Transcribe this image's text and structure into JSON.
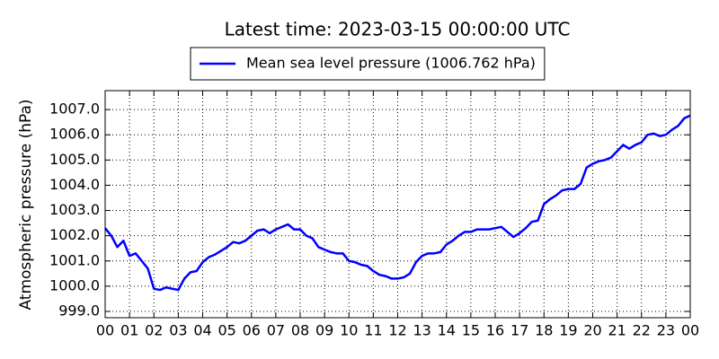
{
  "chart_data": {
    "type": "line",
    "title": "Latest time: 2023-03-15 00:00:00 UTC",
    "ylabel": "Atmospheric pressure (hPa)",
    "x": [
      0,
      0.25,
      0.5,
      0.75,
      1,
      1.25,
      1.5,
      1.75,
      2,
      2.25,
      2.5,
      2.75,
      3,
      3.25,
      3.5,
      3.75,
      4,
      4.25,
      4.5,
      4.75,
      5,
      5.25,
      5.5,
      5.75,
      6,
      6.25,
      6.5,
      6.75,
      7,
      7.25,
      7.5,
      7.75,
      8,
      8.25,
      8.5,
      8.75,
      9,
      9.25,
      9.5,
      9.75,
      10,
      10.25,
      10.5,
      10.75,
      11,
      11.25,
      11.5,
      11.75,
      12,
      12.25,
      12.5,
      12.75,
      13,
      13.25,
      13.5,
      13.75,
      14,
      14.25,
      14.5,
      14.75,
      15,
      15.25,
      15.5,
      15.75,
      16,
      16.25,
      16.5,
      16.75,
      17,
      17.25,
      17.5,
      17.75,
      18,
      18.25,
      18.5,
      18.75,
      19,
      19.25,
      19.5,
      19.75,
      20,
      20.25,
      20.5,
      20.75,
      21,
      21.25,
      21.5,
      21.75,
      22,
      22.25,
      22.5,
      22.75,
      23,
      23.25,
      23.5,
      23.75,
      24
    ],
    "series": [
      {
        "name": "Mean sea level pressure (1006.762 hPa)",
        "color": "#0000ff",
        "values": [
          1002.3,
          1002.0,
          1001.55,
          1001.8,
          1001.2,
          1001.3,
          1001.0,
          1000.7,
          999.9,
          999.85,
          999.95,
          999.9,
          999.85,
          1000.3,
          1000.55,
          1000.6,
          1000.95,
          1001.15,
          1001.25,
          1001.4,
          1001.55,
          1001.75,
          1001.7,
          1001.8,
          1002.0,
          1002.2,
          1002.25,
          1002.1,
          1002.25,
          1002.35,
          1002.45,
          1002.25,
          1002.25,
          1002.0,
          1001.9,
          1001.55,
          1001.45,
          1001.35,
          1001.3,
          1001.3,
          1001.0,
          1000.95,
          1000.85,
          1000.8,
          1000.6,
          1000.45,
          1000.4,
          1000.3,
          1000.3,
          1000.35,
          1000.5,
          1000.95,
          1001.2,
          1001.3,
          1001.3,
          1001.35,
          1001.65,
          1001.8,
          1002.0,
          1002.15,
          1002.15,
          1002.25,
          1002.25,
          1002.25,
          1002.3,
          1002.35,
          1002.15,
          1001.95,
          1002.1,
          1002.3,
          1002.55,
          1002.6,
          1003.25,
          1003.45,
          1003.6,
          1003.8,
          1003.85,
          1003.85,
          1004.05,
          1004.7,
          1004.85,
          1004.95,
          1005.0,
          1005.1,
          1005.35,
          1005.6,
          1005.45,
          1005.6,
          1005.7,
          1006.0,
          1006.05,
          1005.95,
          1006.0,
          1006.2,
          1006.35,
          1006.65,
          1006.762
        ]
      }
    ],
    "xlim": [
      0,
      24
    ],
    "xticks": [
      {
        "value": 0,
        "label": "00"
      },
      {
        "value": 1,
        "label": "01"
      },
      {
        "value": 2,
        "label": "02"
      },
      {
        "value": 3,
        "label": "03"
      },
      {
        "value": 4,
        "label": "04"
      },
      {
        "value": 5,
        "label": "05"
      },
      {
        "value": 6,
        "label": "06"
      },
      {
        "value": 7,
        "label": "07"
      },
      {
        "value": 8,
        "label": "08"
      },
      {
        "value": 9,
        "label": "09"
      },
      {
        "value": 10,
        "label": "10"
      },
      {
        "value": 11,
        "label": "11"
      },
      {
        "value": 12,
        "label": "12"
      },
      {
        "value": 13,
        "label": "13"
      },
      {
        "value": 14,
        "label": "14"
      },
      {
        "value": 15,
        "label": "15"
      },
      {
        "value": 16,
        "label": "16"
      },
      {
        "value": 17,
        "label": "17"
      },
      {
        "value": 18,
        "label": "18"
      },
      {
        "value": 19,
        "label": "19"
      },
      {
        "value": 20,
        "label": "20"
      },
      {
        "value": 21,
        "label": "21"
      },
      {
        "value": 22,
        "label": "22"
      },
      {
        "value": 23,
        "label": "23"
      },
      {
        "value": 24,
        "label": "00"
      }
    ],
    "ylim": [
      998.75,
      1007.75
    ],
    "yticks": [
      {
        "value": 999,
        "label": "999.0"
      },
      {
        "value": 1000,
        "label": "1000.0"
      },
      {
        "value": 1001,
        "label": "1001.0"
      },
      {
        "value": 1002,
        "label": "1002.0"
      },
      {
        "value": 1003,
        "label": "1003.0"
      },
      {
        "value": 1004,
        "label": "1004.0"
      },
      {
        "value": 1005,
        "label": "1005.0"
      },
      {
        "value": 1006,
        "label": "1006.0"
      },
      {
        "value": 1007,
        "label": "1007.0"
      }
    ],
    "grid": true,
    "legend": "top"
  }
}
